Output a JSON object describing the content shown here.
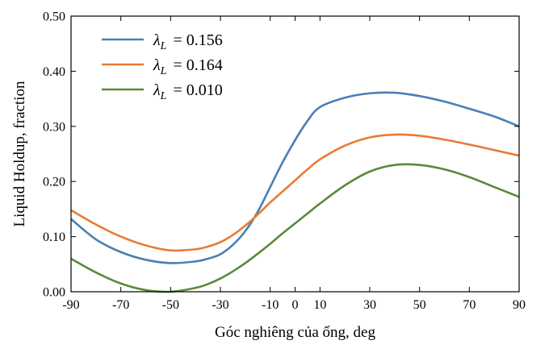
{
  "chart_data": {
    "type": "line",
    "title": "",
    "xlabel": "Góc nghiêng của ống, deg",
    "ylabel": "Liquid Holdup, fraction",
    "xlim": [
      -90,
      90
    ],
    "ylim": [
      0.0,
      0.5
    ],
    "xticks": [
      -90,
      -70,
      -50,
      -30,
      -10,
      0,
      10,
      30,
      50,
      70,
      90
    ],
    "yticks": [
      0.0,
      0.1,
      0.2,
      0.3,
      0.4,
      0.5
    ],
    "ytick_labels": [
      "0.00",
      "0.10",
      "0.20",
      "0.30",
      "0.40",
      "0.50"
    ],
    "grid": false,
    "legend_position": "top-left",
    "series": [
      {
        "name": "λL = 0.156",
        "legend_symbol": "λ",
        "legend_sub": "L",
        "legend_value": "= 0.156",
        "color": "#4a7fb5",
        "x": [
          -90,
          -80,
          -70,
          -60,
          -50,
          -40,
          -35,
          -30,
          -25,
          -20,
          -15,
          -10,
          -5,
          0,
          5,
          10,
          20,
          30,
          40,
          50,
          60,
          70,
          80,
          90
        ],
        "y": [
          0.132,
          0.095,
          0.072,
          0.058,
          0.052,
          0.055,
          0.06,
          0.068,
          0.085,
          0.11,
          0.145,
          0.19,
          0.235,
          0.275,
          0.31,
          0.335,
          0.352,
          0.36,
          0.361,
          0.355,
          0.345,
          0.332,
          0.318,
          0.3
        ]
      },
      {
        "name": "λL = 0.164",
        "legend_symbol": "λ",
        "legend_sub": "L",
        "legend_value": "= 0.164",
        "color": "#e87b33",
        "x": [
          -90,
          -80,
          -70,
          -60,
          -50,
          -40,
          -35,
          -30,
          -25,
          -20,
          -15,
          -10,
          -5,
          0,
          5,
          10,
          20,
          30,
          40,
          50,
          60,
          70,
          80,
          90
        ],
        "y": [
          0.148,
          0.122,
          0.1,
          0.084,
          0.075,
          0.077,
          0.082,
          0.09,
          0.103,
          0.12,
          0.14,
          0.162,
          0.182,
          0.202,
          0.222,
          0.24,
          0.265,
          0.28,
          0.285,
          0.283,
          0.276,
          0.267,
          0.257,
          0.247
        ]
      },
      {
        "name": "λL = 0.010",
        "legend_symbol": "λ",
        "legend_sub": "L",
        "legend_value": "= 0.010",
        "color": "#5a8a3a",
        "x": [
          -90,
          -80,
          -70,
          -60,
          -50,
          -40,
          -35,
          -30,
          -25,
          -20,
          -15,
          -10,
          -5,
          0,
          5,
          10,
          20,
          30,
          40,
          50,
          60,
          70,
          80,
          90
        ],
        "y": [
          0.06,
          0.035,
          0.015,
          0.003,
          0.0,
          0.007,
          0.014,
          0.024,
          0.037,
          0.052,
          0.069,
          0.087,
          0.106,
          0.124,
          0.142,
          0.16,
          0.193,
          0.218,
          0.23,
          0.23,
          0.222,
          0.208,
          0.19,
          0.172
        ]
      }
    ]
  }
}
